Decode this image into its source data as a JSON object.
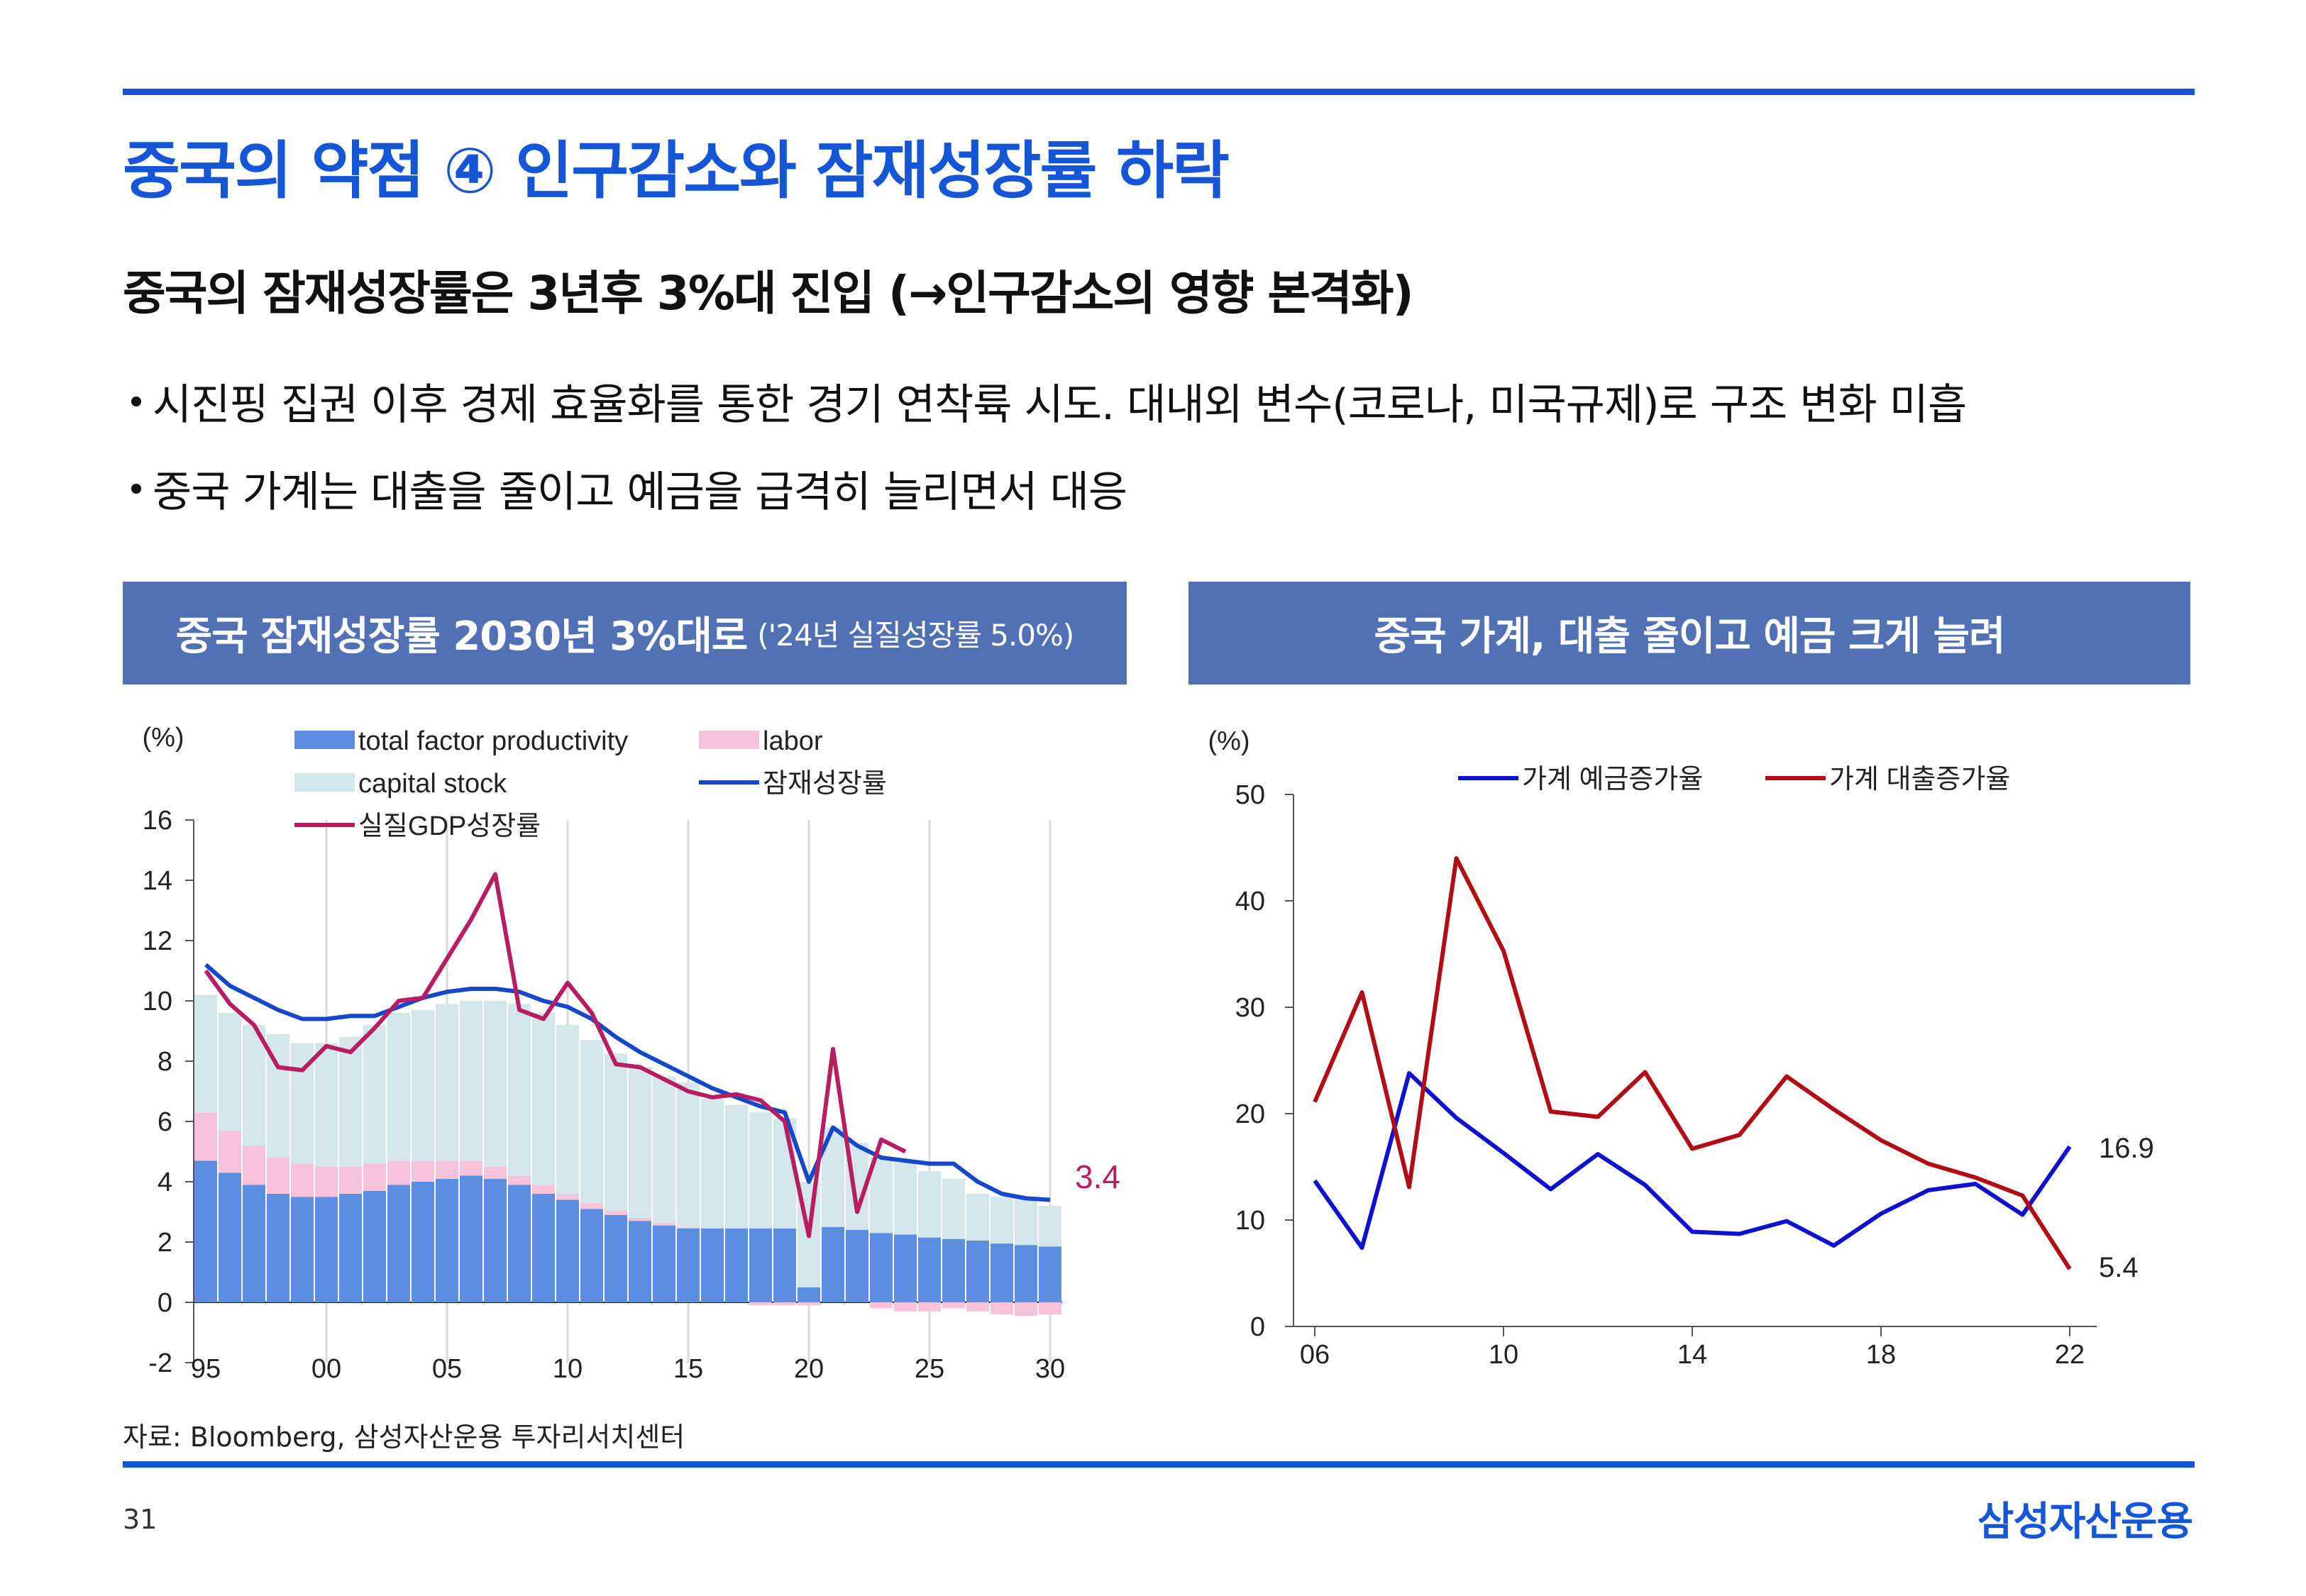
{
  "header": {
    "title": "중국의 약점 ④ 인구감소와 잠재성장률 하락",
    "subtitle": "중국의 잠재성장률은 3년후 3%대 진입 (→인구감소의 영향 본격화)"
  },
  "bullets": [
    "시진핑 집권 이후 경제 효율화를 통한 경기 연착륙 시도. 대내외 변수(코로나, 미국규제)로 구조 변화 미흡",
    "중국 가계는 대출을 줄이고 예금을 급격히 늘리면서 대응"
  ],
  "colors": {
    "accent": "#1456d6",
    "panel_header": "#5271b5",
    "tfp": "#5b8de0",
    "capital": "#d2e6ec",
    "labor": "#f6c3da",
    "potential": "#1448c8",
    "real_gdp": "#b81d62",
    "deposit": "#1010d0",
    "loan": "#b00e14"
  },
  "footer": {
    "source": "자료: Bloomberg, 삼성자산운용 투자리서치센터",
    "page": "31",
    "brand": "삼성자산운용"
  },
  "chart_data": [
    {
      "type": "bar",
      "stacked": true,
      "title": "중국 잠재성장률 2030년 3%대로",
      "title_note": "('24년 실질성장률 5.0%)",
      "ylabel": "(%)",
      "ylim": [
        -2,
        16
      ],
      "yticks": [
        "16",
        "14",
        "12",
        "10",
        "8",
        "6",
        "4",
        "2",
        "0",
        "-2"
      ],
      "xticks": [
        "95",
        "00",
        "05",
        "10",
        "15",
        "20",
        "25",
        "30"
      ],
      "years": [
        1995,
        1996,
        1997,
        1998,
        1999,
        2000,
        2001,
        2002,
        2003,
        2004,
        2005,
        2006,
        2007,
        2008,
        2009,
        2010,
        2011,
        2012,
        2013,
        2014,
        2015,
        2016,
        2017,
        2018,
        2019,
        2020,
        2021,
        2022,
        2023,
        2024,
        2025,
        2026,
        2027,
        2028,
        2029,
        2030
      ],
      "series": [
        {
          "name": "total factor productivity",
          "kind": "bar",
          "values": [
            4.7,
            4.3,
            3.9,
            3.6,
            3.5,
            3.5,
            3.6,
            3.7,
            3.9,
            4.0,
            4.1,
            4.2,
            4.1,
            3.9,
            3.6,
            3.4,
            3.1,
            2.9,
            2.7,
            2.55,
            2.45,
            2.45,
            2.45,
            2.45,
            2.45,
            0.5,
            2.5,
            2.4,
            2.3,
            2.25,
            2.15,
            2.1,
            2.05,
            1.95,
            1.9,
            1.85
          ]
        },
        {
          "name": "labor",
          "kind": "bar",
          "values": [
            1.6,
            1.4,
            1.3,
            1.2,
            1.1,
            1.0,
            0.9,
            0.9,
            0.8,
            0.7,
            0.6,
            0.5,
            0.4,
            0.3,
            0.3,
            0.2,
            0.2,
            0.15,
            0.1,
            0.1,
            0.05,
            0,
            0,
            -0.1,
            -0.1,
            -0.1,
            0,
            0,
            -0.2,
            -0.3,
            -0.3,
            -0.2,
            -0.3,
            -0.4,
            -0.45,
            -0.4
          ]
        },
        {
          "name": "capital stock",
          "kind": "bar",
          "values": [
            3.9,
            3.9,
            4.0,
            4.1,
            4.0,
            4.1,
            4.3,
            4.6,
            4.9,
            5.0,
            5.2,
            5.3,
            5.5,
            5.7,
            5.7,
            5.6,
            5.4,
            5.2,
            5.0,
            4.85,
            4.8,
            4.3,
            4.1,
            3.85,
            3.65,
            3.5,
            3.3,
            2.9,
            2.5,
            2.4,
            2.2,
            2.0,
            1.55,
            1.55,
            1.55,
            1.35
          ]
        },
        {
          "name": "잠재성장률",
          "kind": "line",
          "values": [
            11.2,
            10.5,
            10.1,
            9.7,
            9.4,
            9.4,
            9.5,
            9.5,
            9.8,
            10.1,
            10.3,
            10.4,
            10.4,
            10.3,
            10.0,
            9.8,
            9.4,
            8.8,
            8.3,
            7.9,
            7.5,
            7.1,
            6.8,
            6.5,
            6.3,
            4.0,
            5.8,
            5.2,
            4.8,
            4.7,
            4.6,
            4.6,
            4.0,
            3.6,
            3.45,
            3.4
          ]
        },
        {
          "name": "실질GDP성장률",
          "kind": "line",
          "last_year": 2024,
          "values": [
            11.0,
            9.9,
            9.2,
            7.8,
            7.7,
            8.5,
            8.3,
            9.1,
            10.0,
            10.1,
            11.4,
            12.7,
            14.2,
            9.7,
            9.4,
            10.6,
            9.6,
            7.9,
            7.8,
            7.4,
            7.0,
            6.8,
            6.9,
            6.7,
            6.0,
            2.2,
            8.4,
            3.0,
            5.4,
            5.0
          ]
        }
      ],
      "legend": [
        "total factor productivity",
        "labor",
        "capital stock",
        "잠재성장률",
        "실질GDP성장률"
      ],
      "annotation": "3.4"
    },
    {
      "type": "line",
      "title": "중국 가계, 대출 줄이고 예금 크게 늘려",
      "ylabel": "(%)",
      "ylim": [
        0,
        50
      ],
      "yticks": [
        "50",
        "40",
        "30",
        "20",
        "10",
        "0"
      ],
      "xticks": [
        "06",
        "10",
        "14",
        "18",
        "22"
      ],
      "x": [
        2006,
        2007,
        2008,
        2009,
        2010,
        2011,
        2012,
        2013,
        2014,
        2015,
        2016,
        2017,
        2018,
        2019,
        2020,
        2021,
        2022
      ],
      "series": [
        {
          "name": "가계 예금증가율",
          "values": [
            13.7,
            7.4,
            23.8,
            19.6,
            16.3,
            12.9,
            16.2,
            13.3,
            8.9,
            8.7,
            9.9,
            7.6,
            10.6,
            12.8,
            13.4,
            10.5,
            16.9
          ]
        },
        {
          "name": "가계 대출증가율",
          "values": [
            21.1,
            31.4,
            13.1,
            44.0,
            35.3,
            20.2,
            19.7,
            23.9,
            16.7,
            18.0,
            23.5,
            20.4,
            17.5,
            15.3,
            14.0,
            12.3,
            5.4
          ]
        }
      ],
      "end_labels": [
        "16.9",
        "5.4"
      ]
    }
  ]
}
